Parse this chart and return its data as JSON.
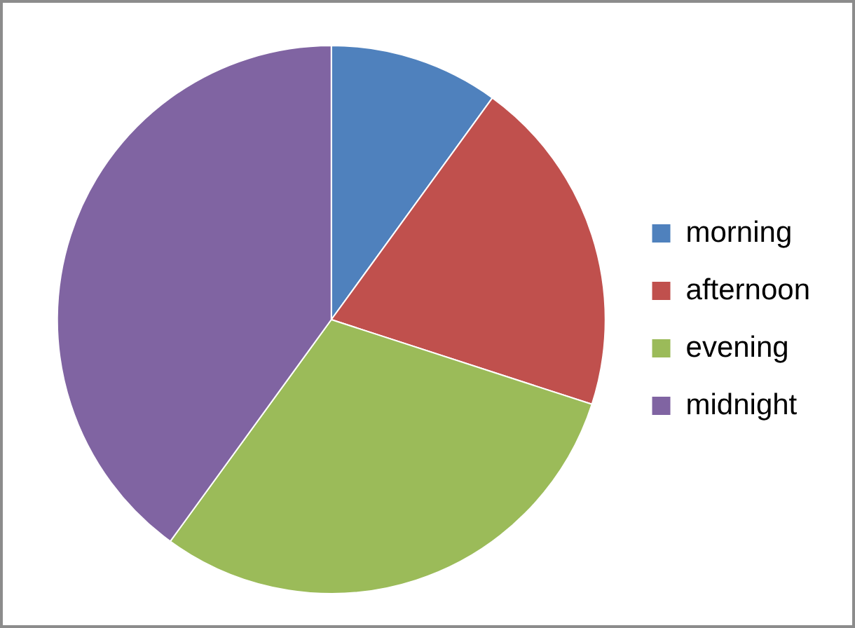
{
  "chart_data": {
    "type": "pie",
    "categories": [
      "morning",
      "afternoon",
      "evening",
      "midnight"
    ],
    "values": [
      10,
      20,
      30,
      40
    ],
    "colors": [
      "#4f81bd",
      "#c0504d",
      "#9bbb59",
      "#8064a2"
    ],
    "legend": "right"
  }
}
